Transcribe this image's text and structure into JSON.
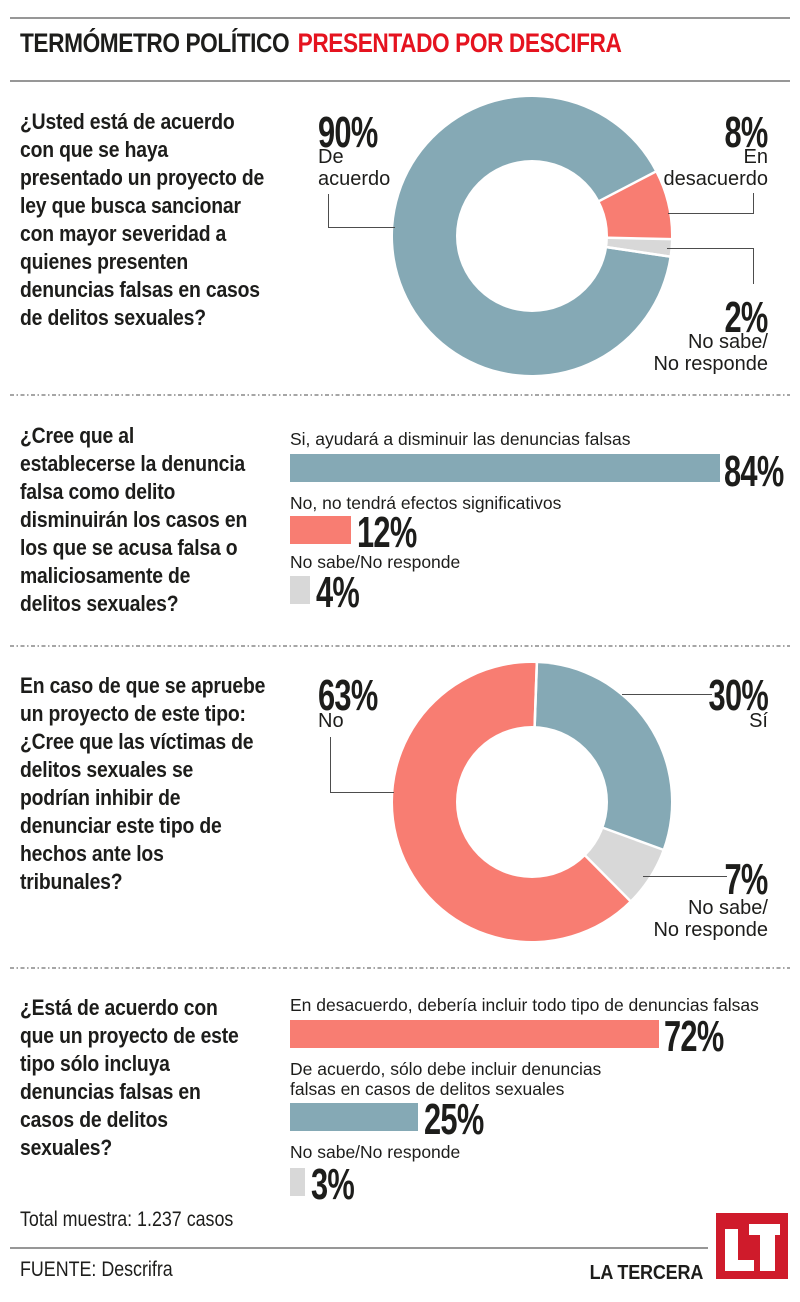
{
  "header": {
    "title": "TERMÓMETRO POLÍTICO",
    "presented_by": "PRESENTADO POR DESCIFRA"
  },
  "palette": {
    "teal": "#85a9b5",
    "salmon": "#f87d72",
    "gray": "#d8d8d8",
    "header_red": "#e5131f",
    "logo_red": "#cf1b2b",
    "text": "#1d1d1b"
  },
  "sections": [
    {
      "question": "¿Usted está de acuerdo\ncon que se haya\npresentado un proyecto de\nley que busca sancionar\ncon mayor severidad a\nquienes presenten\ndenuncias falsas en casos\nde delitos sexuales?",
      "callouts": {
        "main": {
          "pct": "90%",
          "label": "De\nacuerdo"
        },
        "side1": {
          "pct": "8%",
          "label": "En\ndesacuerdo"
        },
        "side2": {
          "pct": "2%",
          "label": "No sabe/\nNo responde"
        }
      }
    },
    {
      "question": "¿Cree que al\nestablecerse la denuncia\nfalsa como delito\ndisminuirán los casos en\nlos que se acusa falsa o\nmaliciosamente de\ndelitos sexuales?",
      "rows": [
        {
          "label": "Si, ayudará a disminuir las denuncias falsas",
          "pct": "84%"
        },
        {
          "label": "No, no tendrá efectos significativos",
          "pct": "12%"
        },
        {
          "label": "No sabe/No responde",
          "pct": "4%"
        }
      ]
    },
    {
      "question": "En caso de que se apruebe\nun proyecto de este tipo:\n¿Cree que las víctimas de\ndelitos sexuales se\npodrían inhibir de\ndenunciar este tipo de\nhechos ante los\ntribunales?",
      "callouts": {
        "main": {
          "pct": "63%",
          "label": "No"
        },
        "side1": {
          "pct": "30%",
          "label": "Sí"
        },
        "side2": {
          "pct": "7%",
          "label": "No sabe/\nNo responde"
        }
      }
    },
    {
      "question": "¿Está de acuerdo con\nque un proyecto de este\ntipo sólo incluya\ndenuncias falsas en\ncasos de delitos\nsexuales?",
      "rows": [
        {
          "label": "En desacuerdo, debería incluir todo tipo de denuncias falsas",
          "pct": "72%"
        },
        {
          "label": "De acuerdo, sólo debe incluir denuncias\nfalsas en casos de delitos sexuales",
          "pct": "25%"
        },
        {
          "label": "No sabe/No responde",
          "pct": "3%"
        }
      ]
    }
  ],
  "chart_data": [
    {
      "type": "pie",
      "variant": "donut",
      "title": "¿Usted está de acuerdo con que se haya presentado un proyecto de ley que busca sancionar con mayor severidad a quienes presenten denuncias falsas en casos de delitos sexuales?",
      "start_angle_deg": 98.5,
      "slices": [
        {
          "label": "De acuerdo",
          "value": 90,
          "color": "#85a9b5"
        },
        {
          "label": "En desacuerdo",
          "value": 8,
          "color": "#f87d72"
        },
        {
          "label": "No sabe/No responde",
          "value": 2,
          "color": "#d8d8d8"
        }
      ]
    },
    {
      "type": "bar",
      "orientation": "horizontal",
      "unit": "%",
      "xlim": [
        0,
        100
      ],
      "title": "¿Cree que al establecerse la denuncia falsa como delito disminuirán los casos en los que se acusa falsa o maliciosamente de delitos sexuales?",
      "bars": [
        {
          "label": "Si, ayudará a disminuir las denuncias falsas",
          "value": 84,
          "color": "#85a9b5"
        },
        {
          "label": "No, no tendrá efectos significativos",
          "value": 12,
          "color": "#f87d72"
        },
        {
          "label": "No sabe/No responde",
          "value": 4,
          "color": "#d8d8d8"
        }
      ]
    },
    {
      "type": "pie",
      "variant": "donut",
      "title": "En caso de que se apruebe un proyecto de este tipo: ¿Cree que las víctimas de delitos sexuales se podrían inhibir de denunciar este tipo de hechos ante los tribunales?",
      "start_angle_deg": 2,
      "slices": [
        {
          "label": "Sí",
          "value": 30,
          "color": "#85a9b5"
        },
        {
          "label": "No sabe/No responde",
          "value": 7,
          "color": "#d8d8d8"
        },
        {
          "label": "No",
          "value": 63,
          "color": "#f87d72"
        }
      ]
    },
    {
      "type": "bar",
      "orientation": "horizontal",
      "unit": "%",
      "xlim": [
        0,
        100
      ],
      "title": "¿Está de acuerdo con que un proyecto de este tipo sólo incluya denuncias falsas en casos de delitos sexuales?",
      "bars": [
        {
          "label": "En desacuerdo, debería incluir todo tipo de denuncias falsas",
          "value": 72,
          "color": "#f87d72"
        },
        {
          "label": "De acuerdo, sólo debe incluir denuncias falsas en casos de delitos sexuales",
          "value": 25,
          "color": "#85a9b5"
        },
        {
          "label": "No sabe/No responde",
          "value": 3,
          "color": "#d8d8d8"
        }
      ]
    }
  ],
  "footer": {
    "total": "Total muestra: 1.237 casos",
    "source": "FUENTE: Descrifra",
    "brand": "LA TERCERA",
    "logo_text": "LT"
  }
}
